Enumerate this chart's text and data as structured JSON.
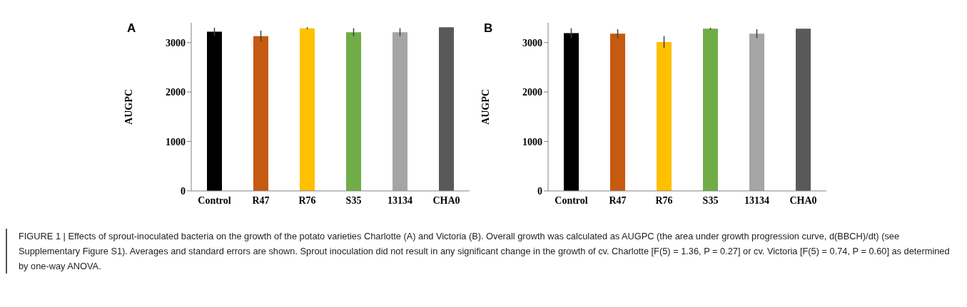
{
  "chart_data": [
    {
      "type": "bar",
      "ylabel": "AUGPC",
      "annotations": [
        "A",
        "FIGURE 1 | Effects of sprout-inoculated bacteria on the growth of the potato varieties Charlotte (A) and Victoria (B). Overall growth was calculated as AUGPC (the area under growth progression curve, d(BBCH)/dt) (see Supplementary Figure S1). Averages and standard errors are shown. Sprout inoculation did not result in any significant change in the growth of cv. Charlotte [F(5) = 1.36, P = 0.27] or cv. Victoria [F(5) = 0.74, P = 0.60] as determined by one-way ANOVA."
      ],
      "categories": [
        "Control",
        "R47",
        "R76",
        "S35",
        "13134",
        "CHA0"
      ],
      "values": [
        3220,
        3130,
        3290,
        3210,
        3210,
        3310
      ],
      "errors": [
        80,
        110,
        20,
        80,
        80,
        null
      ],
      "colors": [
        "#000000",
        "#c55a11",
        "#ffc000",
        "#70ad47",
        "#a5a5a5",
        "#595959"
      ],
      "ylim": [
        0,
        3400
      ],
      "yticks": [
        0,
        1000,
        2000,
        3000
      ],
      "grid": false,
      "legend": false
    },
    {
      "type": "bar",
      "ylabel": "AUGPC",
      "annotations": [
        "B"
      ],
      "categories": [
        "Control",
        "R47",
        "R76",
        "S35",
        "13134",
        "CHA0"
      ],
      "values": [
        3190,
        3180,
        3010,
        3280,
        3180,
        3280
      ],
      "errors": [
        100,
        90,
        120,
        20,
        90,
        null
      ],
      "colors": [
        "#000000",
        "#c55a11",
        "#ffc000",
        "#70ad47",
        "#a5a5a5",
        "#595959"
      ],
      "ylim": [
        0,
        3400
      ],
      "yticks": [
        0,
        1000,
        2000,
        3000
      ],
      "grid": false,
      "legend": false
    }
  ]
}
